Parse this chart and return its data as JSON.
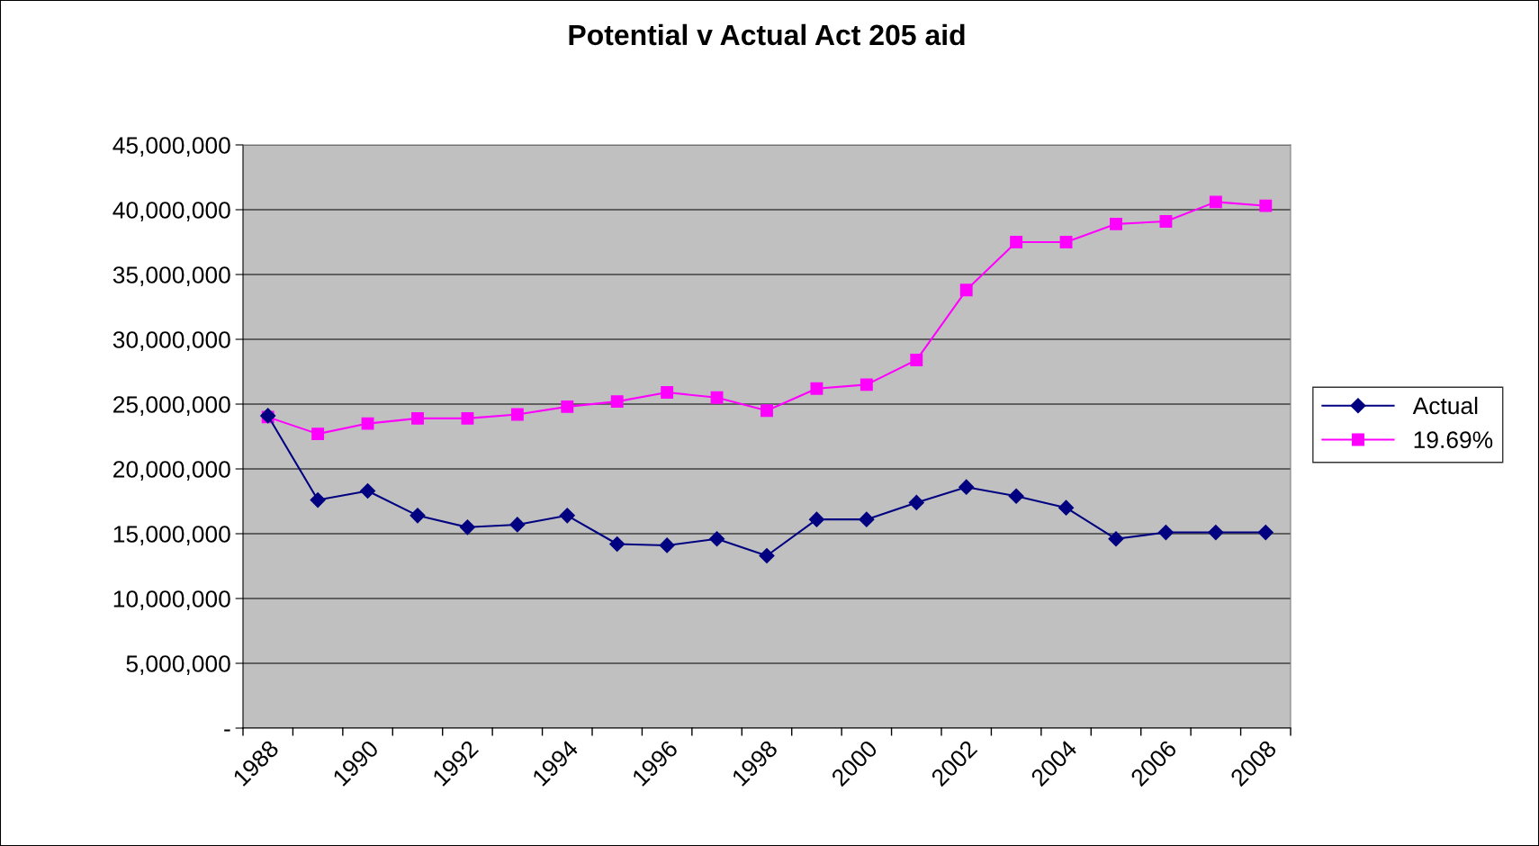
{
  "chart_data": {
    "type": "line",
    "title": "Potential v Actual Act 205 aid",
    "categories": [
      "1988",
      null,
      "1990",
      null,
      "1992",
      null,
      "1994",
      null,
      "1996",
      null,
      "1998",
      null,
      "2000",
      null,
      "2002",
      null,
      "2004",
      null,
      "2006",
      null,
      "2008"
    ],
    "series": [
      {
        "name": "Actual",
        "color": "#000080",
        "marker": "diamond",
        "values": [
          24100000,
          17600000,
          18300000,
          16400000,
          15500000,
          15700000,
          16400000,
          14200000,
          14100000,
          14600000,
          13300000,
          16100000,
          16100000,
          17400000,
          18600000,
          17900000,
          17000000,
          14600000,
          15100000,
          15100000,
          15100000
        ]
      },
      {
        "name": "19.69%",
        "color": "#ff00ff",
        "marker": "square",
        "values": [
          24000000,
          22700000,
          23500000,
          23900000,
          23900000,
          24200000,
          24800000,
          25200000,
          25900000,
          25500000,
          24500000,
          26200000,
          26500000,
          28400000,
          33800000,
          37500000,
          37500000,
          38900000,
          39100000,
          40600000,
          40300000
        ]
      }
    ],
    "ylim": [
      0,
      45000000
    ],
    "yticks": [
      {
        "value": 0,
        "label": "-"
      },
      {
        "value": 5000000,
        "label": "5,000,000"
      },
      {
        "value": 10000000,
        "label": "10,000,000"
      },
      {
        "value": 15000000,
        "label": "15,000,000"
      },
      {
        "value": 20000000,
        "label": "20,000,000"
      },
      {
        "value": 25000000,
        "label": "25,000,000"
      },
      {
        "value": 30000000,
        "label": "30,000,000"
      },
      {
        "value": 35000000,
        "label": "35,000,000"
      },
      {
        "value": 40000000,
        "label": "40,000,000"
      },
      {
        "value": 45000000,
        "label": "45,000,000"
      }
    ],
    "grid": "y",
    "legend": "right",
    "line_style": "solid"
  }
}
